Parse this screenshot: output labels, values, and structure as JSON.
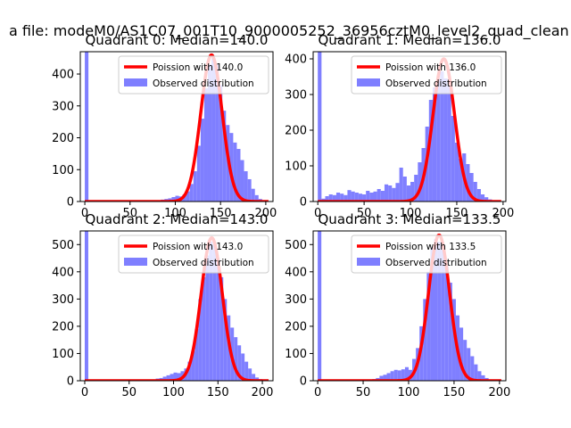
{
  "figure": {
    "suptitle": "a file: modeM0/AS1C07_001T10_9000005252_36956cztM0_level2_quad_clean",
    "colors": {
      "hist": "#7f7fff",
      "poisson": "#ff0000",
      "axis": "#000000"
    }
  },
  "chart_data": [
    {
      "type": "bar",
      "title": "Quadrant 0: Median=140.0",
      "xlim": [
        -5,
        208
      ],
      "ylim": [
        0,
        470
      ],
      "xticks": [
        0,
        50,
        100,
        150,
        200
      ],
      "yticks": [
        0,
        100,
        200,
        300,
        400
      ],
      "legend": [
        "Poission with 140.0",
        "Observed distribution"
      ],
      "legend_position": "upper-right",
      "poisson_mean": 140.0,
      "poisson_peak": 460,
      "bin_width": 4,
      "bin_starts": [
        0,
        68,
        72,
        76,
        80,
        84,
        88,
        92,
        96,
        100,
        104,
        108,
        112,
        116,
        120,
        124,
        128,
        132,
        136,
        140,
        144,
        148,
        152,
        156,
        160,
        164,
        168,
        172,
        176,
        180,
        184,
        188,
        192,
        196
      ],
      "counts": [
        470,
        1,
        2,
        3,
        4,
        6,
        8,
        10,
        14,
        18,
        16,
        22,
        32,
        55,
        95,
        175,
        260,
        355,
        430,
        450,
        430,
        365,
        285,
        240,
        215,
        185,
        165,
        130,
        95,
        70,
        40,
        20,
        8,
        3
      ]
    },
    {
      "type": "bar",
      "title": "Quadrant 1: Median=136.0",
      "xlim": [
        -5,
        203
      ],
      "ylim": [
        0,
        420
      ],
      "xticks": [
        0,
        50,
        100,
        150,
        200
      ],
      "yticks": [
        0,
        100,
        200,
        300,
        400
      ],
      "legend": [
        "Poission with 136.0",
        "Observed distribution"
      ],
      "legend_position": "upper-right",
      "poisson_mean": 136.0,
      "poisson_peak": 400,
      "bin_width": 4,
      "bin_starts": [
        0,
        4,
        8,
        12,
        16,
        20,
        24,
        28,
        32,
        36,
        40,
        44,
        48,
        52,
        56,
        60,
        64,
        68,
        72,
        76,
        80,
        84,
        88,
        92,
        96,
        100,
        104,
        108,
        112,
        116,
        120,
        124,
        128,
        132,
        136,
        140,
        144,
        148,
        152,
        156,
        160,
        164,
        168,
        172,
        176,
        180,
        184,
        188,
        192,
        196
      ],
      "counts": [
        420,
        8,
        15,
        20,
        18,
        25,
        22,
        18,
        32,
        28,
        25,
        22,
        20,
        30,
        25,
        28,
        35,
        30,
        48,
        45,
        38,
        52,
        95,
        70,
        45,
        55,
        75,
        110,
        150,
        210,
        285,
        320,
        345,
        365,
        345,
        325,
        240,
        165,
        120,
        135,
        105,
        80,
        55,
        35,
        20,
        12,
        6,
        3,
        2,
        1
      ]
    },
    {
      "type": "bar",
      "title": "Quadrant 2: Median=143.0",
      "xlim": [
        -5,
        212
      ],
      "ylim": [
        0,
        550
      ],
      "xticks": [
        0,
        50,
        100,
        150,
        200
      ],
      "yticks": [
        0,
        100,
        200,
        300,
        400,
        500
      ],
      "legend": [
        "Poission with 143.0",
        "Observed distribution"
      ],
      "legend_position": "upper-right",
      "poisson_mean": 143.0,
      "poisson_peak": 525,
      "bin_width": 4,
      "bin_starts": [
        0,
        72,
        76,
        80,
        84,
        88,
        92,
        96,
        100,
        104,
        108,
        112,
        116,
        120,
        124,
        128,
        132,
        136,
        140,
        144,
        148,
        152,
        156,
        160,
        164,
        168,
        172,
        176,
        180,
        184,
        188,
        192,
        196,
        200,
        204
      ],
      "counts": [
        550,
        3,
        5,
        8,
        10,
        15,
        20,
        25,
        30,
        28,
        35,
        45,
        70,
        110,
        190,
        300,
        380,
        460,
        510,
        500,
        450,
        380,
        300,
        240,
        195,
        160,
        130,
        100,
        70,
        45,
        25,
        12,
        6,
        3,
        1
      ]
    },
    {
      "type": "bar",
      "title": "Quadrant 3: Median=133.5",
      "xlim": [
        -5,
        207
      ],
      "ylim": [
        0,
        550
      ],
      "xticks": [
        0,
        50,
        100,
        150,
        200
      ],
      "yticks": [
        0,
        100,
        200,
        300,
        400,
        500
      ],
      "legend": [
        "Poission with 133.5",
        "Observed distribution"
      ],
      "legend_position": "upper-right",
      "poisson_mean": 133.5,
      "poisson_peak": 535,
      "bin_width": 4,
      "bin_starts": [
        0,
        56,
        60,
        64,
        68,
        72,
        76,
        80,
        84,
        88,
        92,
        96,
        100,
        104,
        108,
        112,
        116,
        120,
        124,
        128,
        132,
        136,
        140,
        144,
        148,
        152,
        156,
        160,
        164,
        168,
        172,
        176,
        180,
        184,
        188,
        192,
        196
      ],
      "counts": [
        550,
        3,
        6,
        10,
        18,
        22,
        28,
        35,
        40,
        38,
        42,
        50,
        40,
        80,
        120,
        200,
        300,
        400,
        490,
        520,
        510,
        480,
        420,
        360,
        300,
        240,
        195,
        150,
        120,
        90,
        60,
        35,
        20,
        10,
        5,
        2,
        1
      ]
    }
  ]
}
